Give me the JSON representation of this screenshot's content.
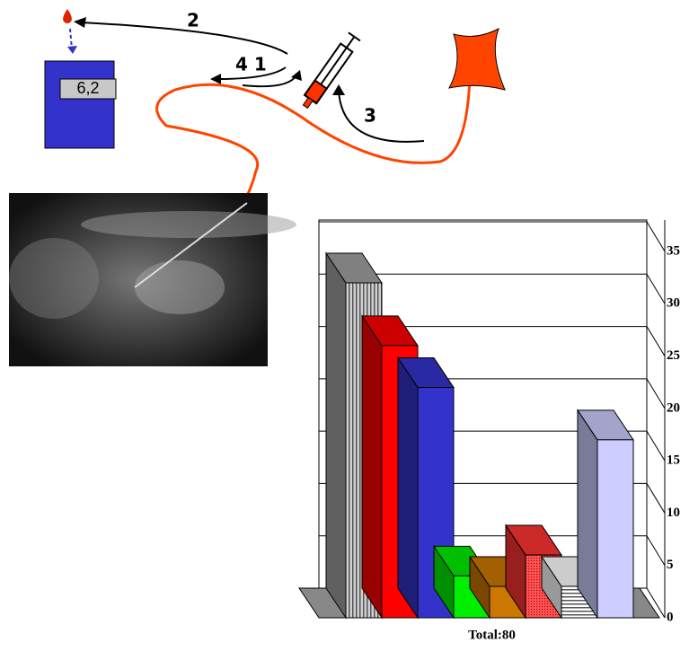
{
  "diagram": {
    "display": "6,2",
    "steps": [
      "2",
      "4 1",
      "3"
    ]
  },
  "chart_data": {
    "type": "bar3d",
    "xlabel": "Total:80",
    "categories": [
      null,
      null,
      null,
      null,
      null,
      null,
      null,
      null
    ],
    "values": [
      32,
      26,
      22,
      4,
      3,
      6,
      3,
      17
    ],
    "colors": [
      "#a0a0a0",
      "#ff0000",
      "#3333cc",
      "#00ee00",
      "#cc7700",
      "#ff3333",
      "#ffffff",
      "#ccccff"
    ],
    "ylim": [
      0,
      35
    ],
    "yticks": [
      0,
      5,
      10,
      15,
      20,
      25,
      30,
      35
    ],
    "grid": true
  }
}
